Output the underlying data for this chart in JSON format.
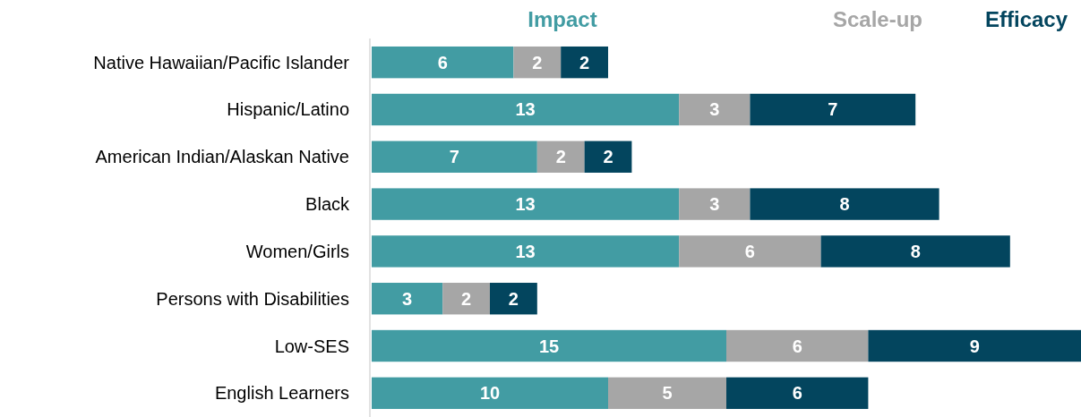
{
  "chart_data": {
    "type": "bar",
    "orientation": "horizontal",
    "stacked": true,
    "data_labels": true,
    "legend": "top",
    "categories": [
      "Native Hawaiian/Pacific Islander",
      "Hispanic/Latino",
      "American Indian/Alaskan Native",
      "Black",
      "Women/Girls",
      "Persons with Disabilities",
      "Low-SES",
      "English Learners"
    ],
    "series": [
      {
        "name": "Impact",
        "color": "#429ca3",
        "values": [
          6,
          13,
          7,
          13,
          13,
          3,
          15,
          10
        ]
      },
      {
        "name": "Scale-up",
        "color": "#a6a6a6",
        "values": [
          2,
          3,
          2,
          3,
          6,
          2,
          6,
          5
        ]
      },
      {
        "name": "Efficacy",
        "color": "#03455e",
        "values": [
          2,
          7,
          2,
          8,
          8,
          2,
          9,
          6
        ]
      }
    ]
  }
}
